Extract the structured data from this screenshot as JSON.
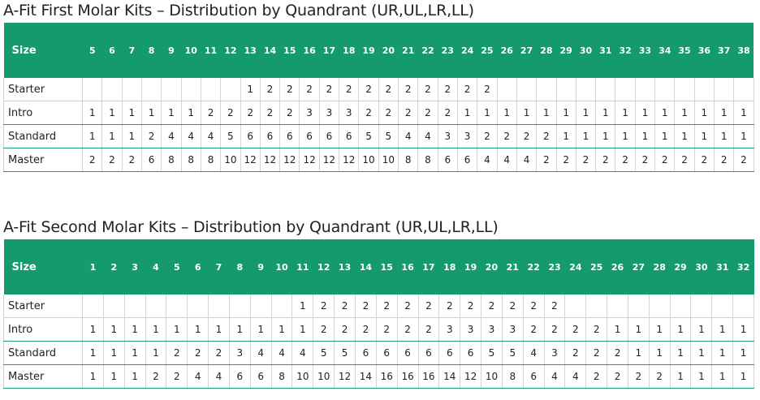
{
  "tables": [
    {
      "title": "A-Fit First Molar Kits – Distribution by Quandrant (UR,UL,LR,LL)",
      "size_label": "Size",
      "sizes": [
        "5",
        "6",
        "7",
        "8",
        "9",
        "10",
        "11",
        "12",
        "13",
        "14",
        "15",
        "16",
        "17",
        "18",
        "19",
        "20",
        "21",
        "22",
        "23",
        "24",
        "25",
        "26",
        "27",
        "28",
        "29",
        "30",
        "31",
        "32",
        "33",
        "34",
        "35",
        "36",
        "37",
        "38"
      ],
      "rows": [
        {
          "label": "Starter",
          "values": [
            "",
            "",
            "",
            "",
            "",
            "",
            "",
            "",
            "1",
            "2",
            "2",
            "2",
            "2",
            "2",
            "2",
            "2",
            "2",
            "2",
            "2",
            "2",
            "2",
            "",
            "",
            "",
            "",
            "",
            "",
            "",
            "",
            "",
            "",
            "",
            "",
            ""
          ]
        },
        {
          "label": "Intro",
          "values": [
            "1",
            "1",
            "1",
            "1",
            "1",
            "1",
            "2",
            "2",
            "2",
            "2",
            "2",
            "3",
            "3",
            "3",
            "2",
            "2",
            "2",
            "2",
            "2",
            "1",
            "1",
            "1",
            "1",
            "1",
            "1",
            "1",
            "1",
            "1",
            "1",
            "1",
            "1",
            "1",
            "1",
            "1"
          ]
        },
        {
          "label": "Standard",
          "values": [
            "1",
            "1",
            "1",
            "2",
            "4",
            "4",
            "4",
            "5",
            "6",
            "6",
            "6",
            "6",
            "6",
            "6",
            "5",
            "5",
            "4",
            "4",
            "3",
            "3",
            "2",
            "2",
            "2",
            "2",
            "1",
            "1",
            "1",
            "1",
            "1",
            "1",
            "1",
            "1",
            "1",
            "1"
          ]
        },
        {
          "label": "Master",
          "values": [
            "2",
            "2",
            "2",
            "6",
            "8",
            "8",
            "8",
            "10",
            "12",
            "12",
            "12",
            "12",
            "12",
            "12",
            "10",
            "10",
            "8",
            "8",
            "6",
            "6",
            "4",
            "4",
            "4",
            "2",
            "2",
            "2",
            "2",
            "2",
            "2",
            "2",
            "2",
            "2",
            "2",
            "2"
          ]
        }
      ]
    },
    {
      "title": "A-Fit Second Molar Kits – Distribution by Quandrant (UR,UL,LR,LL)",
      "size_label": "Size",
      "sizes": [
        "1",
        "2",
        "3",
        "4",
        "5",
        "6",
        "7",
        "8",
        "9",
        "10",
        "11",
        "12",
        "13",
        "14",
        "15",
        "16",
        "17",
        "18",
        "19",
        "20",
        "21",
        "22",
        "23",
        "24",
        "25",
        "26",
        "27",
        "28",
        "29",
        "30",
        "31",
        "32"
      ],
      "rows": [
        {
          "label": "Starter",
          "values": [
            "",
            "",
            "",
            "",
            "",
            "",
            "",
            "",
            "",
            "",
            "1",
            "2",
            "2",
            "2",
            "2",
            "2",
            "2",
            "2",
            "2",
            "2",
            "2",
            "2",
            "2",
            "",
            "",
            "",
            "",
            "",
            "",
            "",
            "",
            ""
          ]
        },
        {
          "label": "Intro",
          "values": [
            "1",
            "1",
            "1",
            "1",
            "1",
            "1",
            "1",
            "1",
            "1",
            "1",
            "1",
            "2",
            "2",
            "2",
            "2",
            "2",
            "2",
            "3",
            "3",
            "3",
            "3",
            "2",
            "2",
            "2",
            "2",
            "1",
            "1",
            "1",
            "1",
            "1",
            "1",
            "1"
          ]
        },
        {
          "label": "Standard",
          "values": [
            "1",
            "1",
            "1",
            "1",
            "2",
            "2",
            "2",
            "3",
            "4",
            "4",
            "4",
            "5",
            "5",
            "6",
            "6",
            "6",
            "6",
            "6",
            "6",
            "5",
            "5",
            "4",
            "3",
            "2",
            "2",
            "2",
            "1",
            "1",
            "1",
            "1",
            "1",
            "1"
          ]
        },
        {
          "label": "Master",
          "values": [
            "1",
            "1",
            "1",
            "2",
            "2",
            "4",
            "4",
            "6",
            "6",
            "8",
            "10",
            "10",
            "12",
            "14",
            "16",
            "16",
            "16",
            "14",
            "12",
            "10",
            "8",
            "6",
            "4",
            "4",
            "2",
            "2",
            "2",
            "2",
            "1",
            "1",
            "1",
            "1"
          ]
        }
      ]
    }
  ]
}
